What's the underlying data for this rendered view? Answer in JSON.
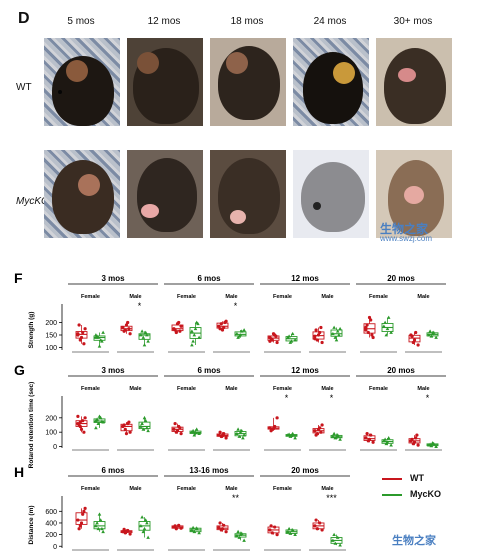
{
  "panel_D": {
    "letter": "D",
    "ages": [
      "5 mos",
      "12 mos",
      "18 mos",
      "24 mos",
      "30+ mos"
    ],
    "rows": [
      "WT",
      "MycKO"
    ]
  },
  "watermarks": {
    "top_cn": "生物之家",
    "top_url": "www.swzj.com",
    "bottom_cn": "生物之家"
  },
  "legend": {
    "wt": "WT",
    "myc": "MycKO",
    "wt_color": "#c8161d",
    "myc_color": "#2b9a2b"
  },
  "chart_data": [
    {
      "panel": "F",
      "type": "box",
      "ylabel": "Strength (g)",
      "ylim": [
        90,
        250
      ],
      "yticks": [
        100,
        150,
        200
      ],
      "groups": [
        {
          "age": "3 mos",
          "subs": [
            {
              "sex": "Female",
              "sig": "",
              "wt": [
                155,
                130,
                160,
                175,
                190,
                140,
                115,
                150
              ],
              "myc": [
                150,
                140,
                130,
                160,
                145,
                105,
                125,
                140
              ]
            },
            {
              "sex": "Male",
              "sig": "*",
              "wt": [
                180,
                170,
                200,
                155,
                165,
                190,
                175
              ],
              "myc": [
                150,
                140,
                160,
                125,
                165,
                110,
                150
              ]
            }
          ]
        },
        {
          "age": "6 mos",
          "subs": [
            {
              "sex": "Female",
              "sig": "",
              "wt": [
                175,
                160,
                200,
                185,
                170,
                195,
                165
              ],
              "myc": [
                165,
                150,
                200,
                140,
                125,
                175,
                195,
                110
              ]
            },
            {
              "sex": "Male",
              "sig": "*",
              "wt": [
                185,
                195,
                180,
                205,
                175,
                170,
                200
              ],
              "myc": [
                155,
                145,
                165,
                170,
                140,
                150
              ]
            }
          ]
        },
        {
          "age": "12 mos",
          "subs": [
            {
              "sex": "Female",
              "sig": "",
              "wt": [
                140,
                130,
                150,
                120,
                135,
                155,
                145,
                125
              ],
              "myc": [
                140,
                120,
                155,
                130,
                145,
                125
              ]
            },
            {
              "sex": "Male",
              "sig": "",
              "wt": [
                145,
                130,
                160,
                120,
                170,
                150,
                180,
                135
              ],
              "myc": [
                155,
                140,
                165,
                175,
                180,
                130,
                150
              ]
            }
          ]
        },
        {
          "age": "20 mos",
          "subs": [
            {
              "sex": "Female",
              "sig": "",
              "wt": [
                180,
                160,
                210,
                140,
                190,
                220,
                150,
                170
              ],
              "myc": [
                185,
                150,
                220,
                160,
                200,
                175
              ]
            },
            {
              "sex": "Male",
              "sig": "",
              "wt": [
                150,
                120,
                160,
                110,
                145,
                130
              ],
              "myc": [
                150,
                145,
                160,
                140,
                165,
                155
              ]
            }
          ]
        }
      ]
    },
    {
      "panel": "G",
      "type": "box",
      "ylabel": "Rotarod retention time (sec)",
      "ylim": [
        -10,
        310
      ],
      "yticks": [
        0,
        100,
        200
      ],
      "groups": [
        {
          "age": "3 mos",
          "subs": [
            {
              "sex": "Female",
              "sig": "",
              "wt": [
                160,
                140,
                180,
                200,
                150,
                120,
                100,
                210,
                170
              ],
              "myc": [
                180,
                160,
                200,
                170,
                190,
                210,
                175,
                130
              ]
            },
            {
              "sex": "Male",
              "sig": "",
              "wt": [
                140,
                120,
                160,
                100,
                150,
                90,
                170
              ],
              "myc": [
                140,
                120,
                180,
                110,
                160,
                200,
                130
              ]
            }
          ]
        },
        {
          "age": "6 mos",
          "subs": [
            {
              "sex": "Female",
              "sig": "",
              "wt": [
                120,
                100,
                140,
                90,
                160,
                110,
                130
              ],
              "myc": [
                100,
                80,
                120,
                90,
                110,
                95
              ]
            },
            {
              "sex": "Male",
              "sig": "",
              "wt": [
                80,
                70,
                90,
                60,
                100,
                75
              ],
              "myc": [
                90,
                70,
                110,
                80,
                120,
                100,
                60
              ]
            }
          ]
        },
        {
          "age": "12 mos",
          "subs": [
            {
              "sex": "Female",
              "sig": "*",
              "wt": [
                130,
                120,
                140,
                200,
                110,
                125
              ],
              "myc": [
                80,
                70,
                90,
                60,
                85,
                75
              ]
            },
            {
              "sex": "Male",
              "sig": "*",
              "wt": [
                110,
                90,
                130,
                150,
                80,
                120,
                100
              ],
              "myc": [
                70,
                60,
                80,
                50,
                90,
                65
              ]
            }
          ]
        },
        {
          "age": "20 mos",
          "subs": [
            {
              "sex": "Female",
              "sig": "",
              "wt": [
                60,
                40,
                80,
                30,
                90,
                50
              ],
              "myc": [
                40,
                20,
                60,
                10,
                50,
                30
              ]
            },
            {
              "sex": "Male",
              "sig": "*",
              "wt": [
                40,
                20,
                60,
                10,
                50,
                30,
                80
              ],
              "myc": [
                10,
                5,
                20,
                0,
                15,
                25
              ]
            }
          ]
        }
      ]
    },
    {
      "panel": "H",
      "type": "box",
      "ylabel": "Distance (m)",
      "ylim": [
        -30,
        760
      ],
      "yticks": [
        0,
        200,
        400,
        600
      ],
      "groups": [
        {
          "age": "6 mos",
          "subs": [
            {
              "sex": "Female",
              "sig": "",
              "wt": [
                450,
                350,
                550,
                650,
                300,
                400,
                600
              ],
              "myc": [
                350,
                300,
                450,
                250,
                400,
                550,
                300
              ]
            },
            {
              "sex": "Male",
              "sig": "",
              "wt": [
                250,
                230,
                270,
                210,
                290,
                260
              ],
              "myc": [
                350,
                250,
                450,
                150,
                500,
                300,
                400
              ]
            }
          ]
        },
        {
          "age": "13-16 mos",
          "subs": [
            {
              "sex": "Female",
              "sig": "",
              "wt": [
                330,
                300,
                360,
                310,
                350
              ],
              "myc": [
                280,
                250,
                310,
                230,
                320
              ]
            },
            {
              "sex": "Male",
              "sig": "**",
              "wt": [
                320,
                280,
                360,
                250,
                400,
                300
              ],
              "myc": [
                180,
                150,
                220,
                100,
                250,
                200
              ]
            }
          ]
        },
        {
          "age": "20 mos",
          "subs": [
            {
              "sex": "Female",
              "sig": "",
              "wt": [
                280,
                230,
                330,
                200,
                350
              ],
              "myc": [
                250,
                220,
                280,
                200,
                300
              ]
            },
            {
              "sex": "Male",
              "sig": "***",
              "wt": [
                350,
                300,
                400,
                280,
                450
              ],
              "myc": [
                100,
                50,
                150,
                20,
                200
              ]
            }
          ]
        }
      ]
    }
  ]
}
